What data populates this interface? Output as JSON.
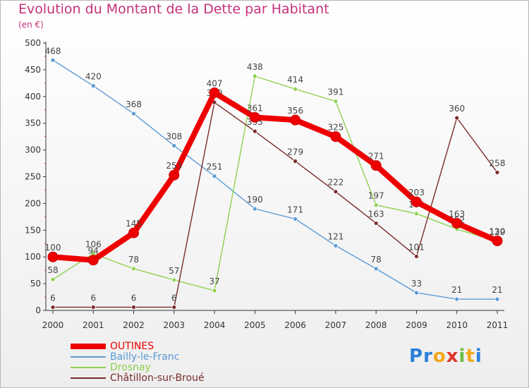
{
  "title": "Evolution du Montant de la Dette par Habitant",
  "subtitle": "(en €)",
  "logo": {
    "letters": [
      "P",
      "r",
      "o",
      "x",
      "i",
      "t",
      "i"
    ],
    "colors": [
      "#2b7fd9",
      "#2b7fd9",
      "#f2a81d",
      "#e0332a",
      "#6bbd45",
      "#f2a81d",
      "#2b7fd9"
    ]
  },
  "chart_data": {
    "type": "line",
    "title": "Evolution du Montant de la Dette par Habitant",
    "subtitle": "(en €)",
    "x": [
      "2000",
      "2001",
      "2002",
      "2003",
      "2004",
      "2005",
      "2006",
      "2007",
      "2008",
      "2009",
      "2010",
      "2011"
    ],
    "ylim": [
      0,
      500
    ],
    "yticks": [
      0,
      50,
      100,
      150,
      200,
      250,
      300,
      350,
      400,
      450,
      500
    ],
    "grid": false,
    "legend_position": "bottom-left",
    "series": [
      {
        "name": "Bailly-le-Franc",
        "color": "#5b9bd5",
        "values": [
          468,
          420,
          368,
          308,
          251,
          190,
          171,
          121,
          78,
          33,
          21,
          21
        ]
      },
      {
        "name": "Drosnay",
        "color": "#8fd14f",
        "values": [
          58,
          106,
          78,
          57,
          37,
          438,
          414,
          391,
          197,
          181,
          152,
          129
        ]
      },
      {
        "name": "Châtillon-sur-Broué",
        "color": "#7b2b2b",
        "values": [
          6,
          6,
          6,
          6,
          389,
          335,
          279,
          222,
          163,
          101,
          360,
          258
        ]
      },
      {
        "name": "OUTINES",
        "color": "#ee0000",
        "values": [
          100,
          94,
          145,
          253,
          407,
          361,
          356,
          325,
          271,
          203,
          163,
          130
        ]
      }
    ],
    "legend": [
      "OUTINES",
      "Bailly-le-Franc",
      "Drosnay",
      "Châtillon-sur-Broué"
    ]
  }
}
